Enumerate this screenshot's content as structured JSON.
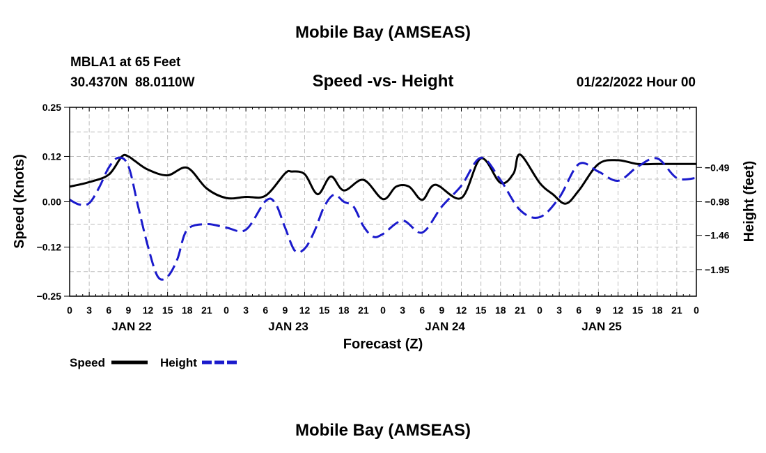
{
  "header": {
    "title": "Mobile Bay (AMSEAS)",
    "station": "MBLA1 at 65 Feet",
    "coords": "30.4370N  88.0110W",
    "chart_title": "Speed -vs- Height",
    "datetime": "01/22/2022 Hour 00",
    "footer_title": "Mobile Bay (AMSEAS)"
  },
  "legend": {
    "speed_label": "Speed",
    "height_label": "Height",
    "speed_color": "#000000",
    "height_color": "#1a1acc"
  },
  "chart_data": {
    "type": "line",
    "title": "Speed -vs- Height",
    "xlabel": "Forecast (Z)",
    "ylabel": "Speed (Knots)",
    "y2label": "Height (feet)",
    "x_unit": "hours from 01/22/2022 00Z",
    "xlim": [
      0,
      96
    ],
    "ylim": [
      -0.25,
      0.25
    ],
    "y2lim": [
      -2.33,
      0.37
    ],
    "grid": true,
    "legend_position": "bottom-left",
    "x_tick_labels": [
      "0",
      "3",
      "6",
      "9",
      "12",
      "15",
      "18",
      "21",
      "0",
      "3",
      "6",
      "9",
      "12",
      "15",
      "18",
      "21",
      "0",
      "3",
      "6",
      "9",
      "12",
      "15",
      "18",
      "21",
      "0",
      "3",
      "6",
      "9",
      "12",
      "15",
      "18",
      "21",
      "0"
    ],
    "day_labels": [
      "JAN 22",
      "JAN 23",
      "JAN 24",
      "JAN 25"
    ],
    "y_tick_labels": [
      "0.25",
      "0.12",
      "0.00",
      "−0.12",
      "−0.25"
    ],
    "y_ticks": [
      0.25,
      0.12,
      0.0,
      -0.12,
      -0.25
    ],
    "y2_tick_labels": [
      "−0.49",
      "−0.98",
      "−1.46",
      "−1.95"
    ],
    "y2_ticks": [
      -0.49,
      -0.98,
      -1.46,
      -1.95
    ],
    "series": [
      {
        "name": "Speed",
        "axis": "left",
        "style": "solid",
        "x": [
          0,
          3,
          6,
          8,
          9,
          10,
          12,
          15,
          18,
          21,
          24,
          27,
          30,
          33,
          34,
          36,
          38,
          40,
          42,
          45,
          48,
          50,
          52,
          54,
          56,
          60,
          63,
          66,
          68,
          69,
          72,
          74,
          76,
          78,
          81,
          84,
          87,
          90,
          93,
          96
        ],
        "y": [
          0.04,
          0.052,
          0.072,
          0.12,
          0.12,
          0.108,
          0.085,
          0.07,
          0.09,
          0.035,
          0.01,
          0.013,
          0.016,
          0.075,
          0.08,
          0.073,
          0.02,
          0.067,
          0.03,
          0.058,
          0.007,
          0.04,
          0.04,
          0.005,
          0.045,
          0.01,
          0.115,
          0.05,
          0.075,
          0.125,
          0.05,
          0.02,
          -0.005,
          0.03,
          0.1,
          0.11,
          0.1,
          0.1,
          0.1,
          0.1
        ]
      },
      {
        "name": "Height",
        "axis": "right",
        "style": "dashed",
        "x": [
          0,
          1.5,
          3,
          4.5,
          6,
          7.5,
          9,
          10.5,
          12,
          13.5,
          15,
          16.5,
          18,
          21,
          24,
          27,
          30,
          31.5,
          33,
          34.5,
          36,
          37.5,
          39,
          40.5,
          42,
          43.5,
          45,
          46.5,
          48,
          51,
          54,
          57,
          60,
          63,
          66,
          69,
          72,
          75,
          78,
          81,
          84,
          87,
          90,
          93,
          96
        ],
        "y": [
          -0.95,
          -1.02,
          -1.0,
          -0.78,
          -0.49,
          -0.35,
          -0.47,
          -1.05,
          -1.62,
          -2.05,
          -2.05,
          -1.8,
          -1.38,
          -1.3,
          -1.35,
          -1.38,
          -0.97,
          -1.0,
          -1.35,
          -1.68,
          -1.65,
          -1.4,
          -1.05,
          -0.88,
          -0.98,
          -1.05,
          -1.33,
          -1.48,
          -1.44,
          -1.25,
          -1.42,
          -1.05,
          -0.75,
          -0.35,
          -0.67,
          -1.1,
          -1.2,
          -0.92,
          -0.44,
          -0.55,
          -0.68,
          -0.48,
          -0.36,
          -0.64,
          -0.64
        ]
      }
    ]
  }
}
